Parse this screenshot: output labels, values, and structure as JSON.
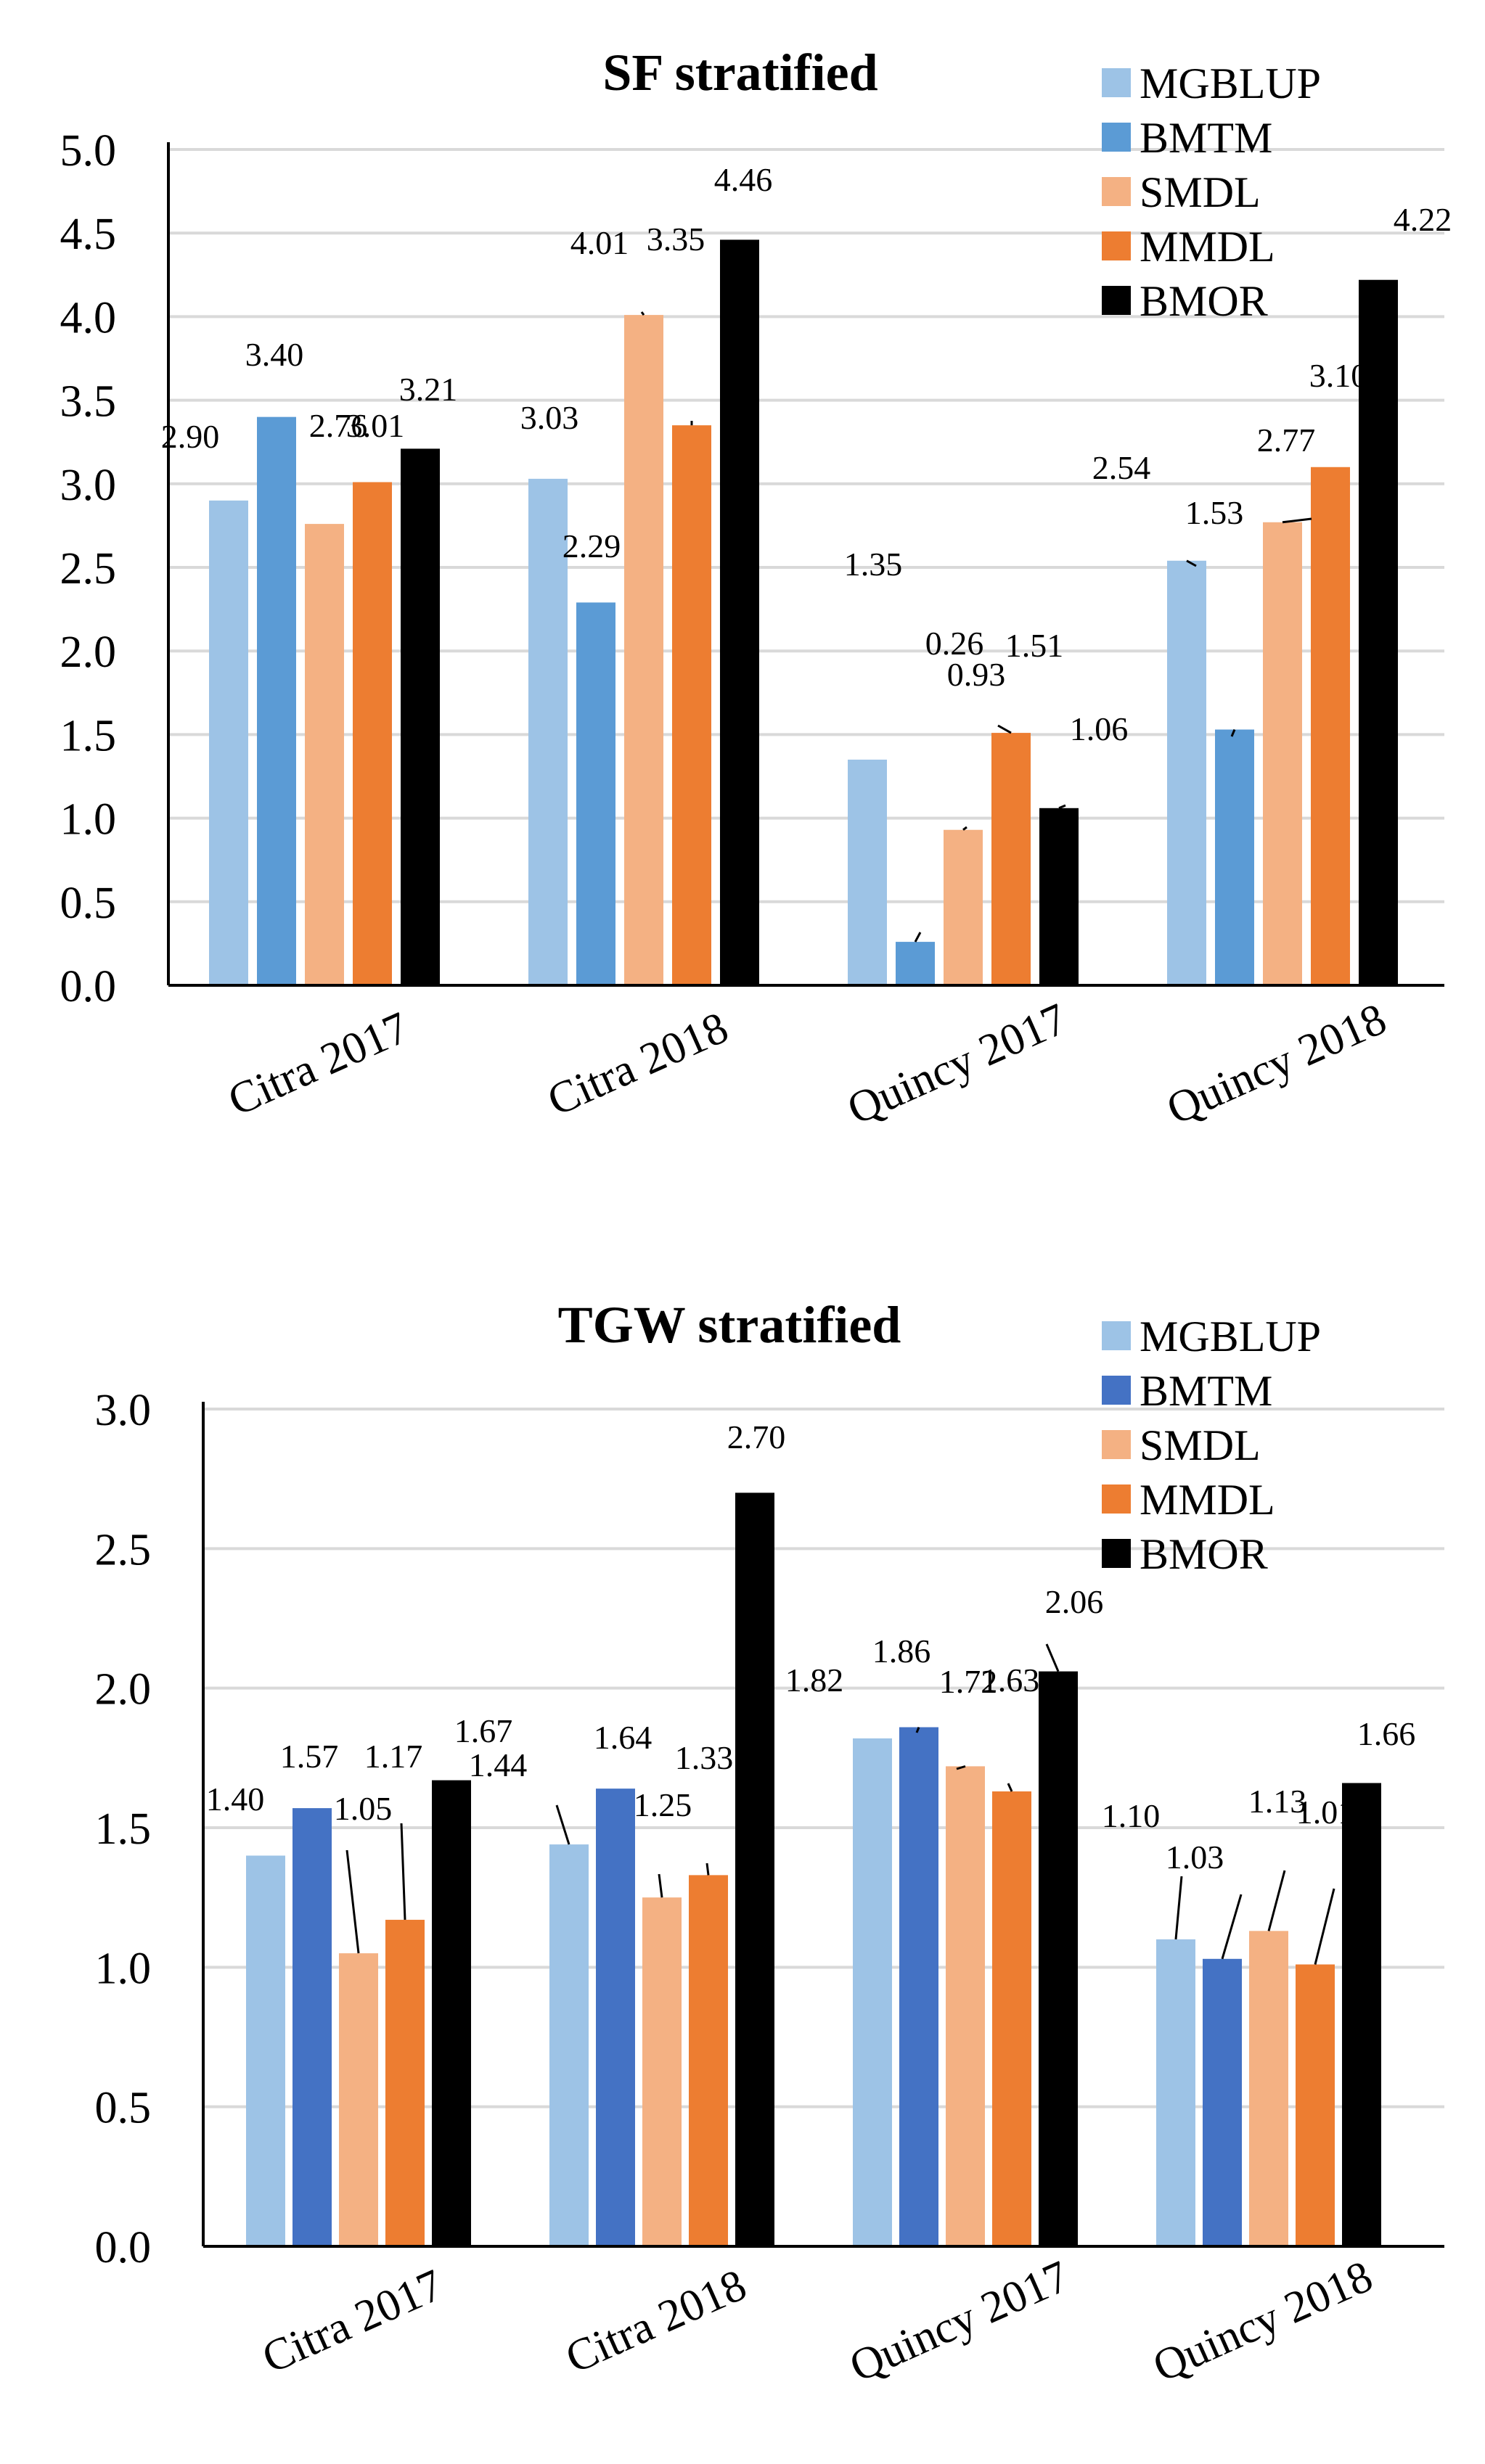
{
  "chart_data": [
    {
      "type": "bar",
      "title": "SF stratified",
      "categories": [
        "Citra 2017",
        "Citra 2018",
        "Quincy 2017",
        "Quincy 2018"
      ],
      "ylim": [
        0,
        5.0
      ],
      "yticks": [
        "0.0",
        "0.5",
        "1.0",
        "1.5",
        "2.0",
        "2.5",
        "3.0",
        "3.5",
        "4.0",
        "4.5",
        "5.0"
      ],
      "grid": true,
      "legend_position": "top-right",
      "series": [
        {
          "name": "MGBLUP",
          "color": "#9DC3E6",
          "values": [
            2.9,
            3.03,
            1.35,
            2.54
          ],
          "labels": [
            "2.90",
            "3.03",
            "1.35",
            "2.54"
          ]
        },
        {
          "name": "BMTM",
          "color": "#5B9BD5",
          "values": [
            3.4,
            2.29,
            0.26,
            1.53
          ],
          "labels": [
            "3.40",
            "2.29",
            "0.26",
            "1.53"
          ]
        },
        {
          "name": "SMDL",
          "color": "#F4B183",
          "values": [
            2.76,
            4.01,
            0.93,
            2.77
          ],
          "labels": [
            "2.76",
            "4.01",
            "0.93",
            "2.77"
          ]
        },
        {
          "name": "MMDL",
          "color": "#ED7D31",
          "values": [
            3.01,
            3.35,
            1.51,
            3.1
          ],
          "labels": [
            "3.01",
            "3.35",
            "1.51",
            "3.10"
          ]
        },
        {
          "name": "BMOR",
          "color": "#000000",
          "values": [
            3.21,
            4.46,
            1.06,
            4.22
          ],
          "labels": [
            "3.21",
            "4.46",
            "1.06",
            "4.22"
          ]
        }
      ]
    },
    {
      "type": "bar",
      "title": "TGW stratified",
      "categories": [
        "Citra 2017",
        "Citra 2018",
        "Quincy 2017",
        "Quincy 2018"
      ],
      "ylim": [
        0,
        3.0
      ],
      "yticks": [
        "0.0",
        "0.5",
        "1.0",
        "1.5",
        "2.0",
        "2.5",
        "3.0"
      ],
      "grid": true,
      "legend_position": "top-right",
      "series": [
        {
          "name": "MGBLUP",
          "color": "#9DC3E6",
          "values": [
            1.4,
            1.44,
            1.82,
            1.1
          ],
          "labels": [
            "1.40",
            "1.44",
            "1.82",
            "1.10"
          ]
        },
        {
          "name": "BMTM",
          "color": "#4472C4",
          "values": [
            1.57,
            1.64,
            1.86,
            1.03
          ],
          "labels": [
            "1.57",
            "1.64",
            "1.86",
            "1.03"
          ]
        },
        {
          "name": "SMDL",
          "color": "#F4B183",
          "values": [
            1.05,
            1.25,
            1.72,
            1.13
          ],
          "labels": [
            "1.05",
            "1.25",
            "1.72",
            "1.13"
          ]
        },
        {
          "name": "MMDL",
          "color": "#ED7D31",
          "values": [
            1.17,
            1.33,
            1.63,
            1.01
          ],
          "labels": [
            "1.17",
            "1.33",
            "1.63",
            "1.01"
          ]
        },
        {
          "name": "BMOR",
          "color": "#000000",
          "values": [
            1.67,
            2.7,
            2.06,
            1.66
          ],
          "labels": [
            "1.67",
            "2.70",
            "2.06",
            "1.66"
          ]
        }
      ]
    }
  ]
}
